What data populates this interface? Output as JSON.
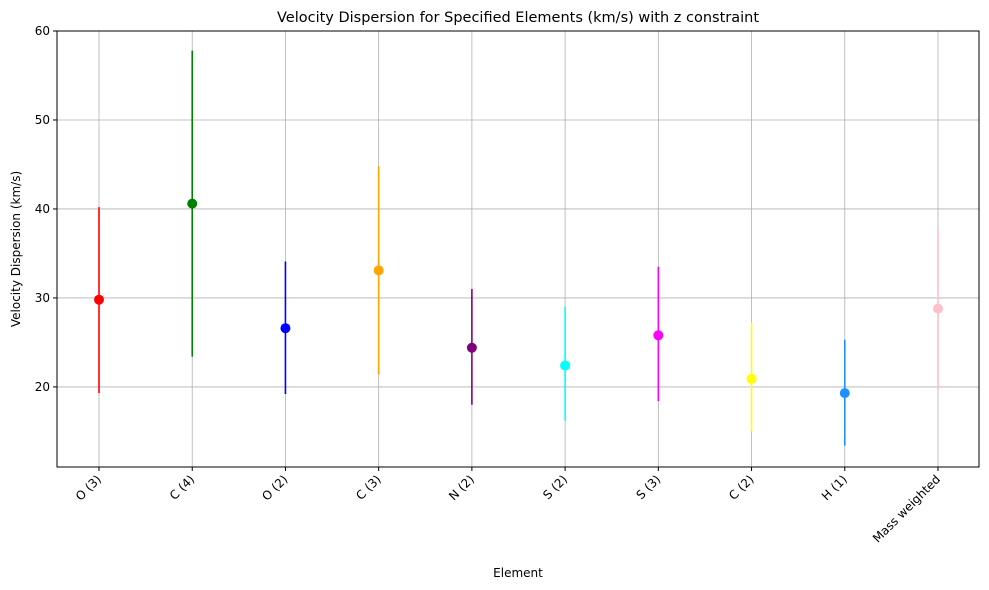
{
  "chart_data": {
    "type": "scatter",
    "title": "Velocity Dispersion for Specified Elements (km/s) with z constraint",
    "xlabel": "Element",
    "ylabel": "Velocity Dispersion (km/s)",
    "ylim": [
      11,
      60
    ],
    "yticks": [
      20,
      30,
      40,
      50,
      60
    ],
    "grid": true,
    "categories": [
      "O (3)",
      "C (4)",
      "O (2)",
      "C (3)",
      "N (2)",
      "S (2)",
      "S (3)",
      "C (2)",
      "H (1)",
      "Mass weighted"
    ],
    "values": [
      29.8,
      40.6,
      26.6,
      33.1,
      24.4,
      22.4,
      25.8,
      20.9,
      19.3,
      28.8
    ],
    "error_low": [
      19.3,
      23.4,
      19.2,
      21.4,
      18.0,
      16.2,
      18.4,
      15.0,
      13.4,
      19.8
    ],
    "error_high": [
      40.2,
      57.8,
      34.1,
      44.8,
      31.0,
      29.0,
      33.5,
      27.2,
      25.3,
      37.6
    ],
    "colors": [
      "#ff0000",
      "#008000",
      "#0000ff",
      "#ffa500",
      "#800080",
      "#00ffff",
      "#ff00ff",
      "#ffff00",
      "#1e90ff",
      "#ffc0cb"
    ]
  }
}
